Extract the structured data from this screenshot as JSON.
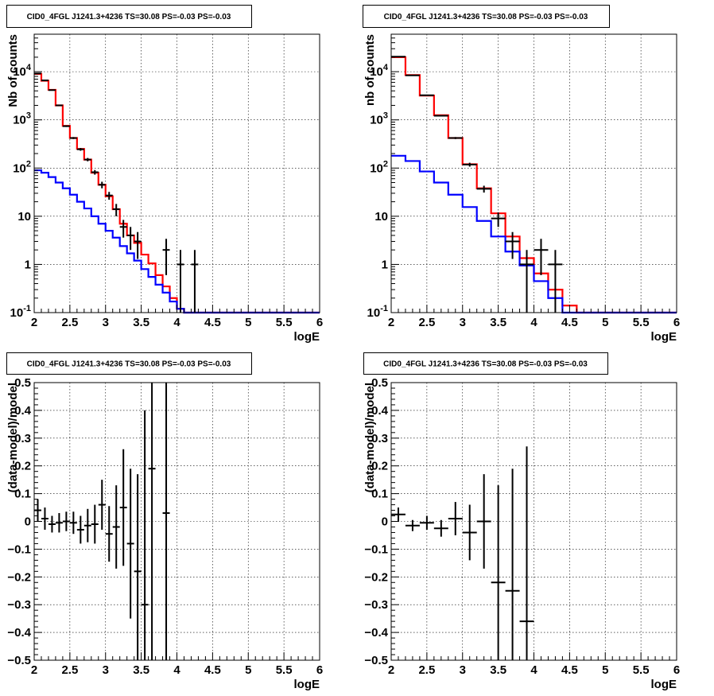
{
  "chart_data": [
    {
      "id": "top-left",
      "type": "histogram",
      "title": "CID0_4FGL J1241.3+4236 TS=30.08 PS=-0.03 PS=-0.03",
      "xlabel": "logE",
      "ylabel": "Nb of counts",
      "xlim": [
        2,
        6
      ],
      "ylim": [
        0.1,
        60000
      ],
      "yscale": "log",
      "grid": true,
      "xticks": [
        2,
        2.5,
        3,
        3.5,
        4,
        4.5,
        5,
        5.5,
        6
      ],
      "xtick_labels": [
        "2",
        "2.5",
        "3",
        "3.5",
        "4",
        "4.5",
        "5",
        "5.5",
        "6"
      ],
      "yticks": [
        0.1,
        1,
        10,
        100,
        1000,
        10000
      ],
      "ytick_labels": [
        "10^-1",
        "1",
        "10",
        "10^2",
        "10^3",
        "10^4"
      ],
      "bin_edges": [
        2,
        2.1,
        2.2,
        2.3,
        2.4,
        2.5,
        2.6,
        2.7,
        2.8,
        2.9,
        3,
        3.1,
        3.2,
        3.3,
        3.4,
        3.5,
        3.6,
        3.7,
        3.8,
        3.9,
        4,
        4.1,
        4.2,
        4.3,
        4.4,
        4.5,
        4.6,
        4.7,
        4.8,
        4.9,
        5,
        5.1,
        5.2,
        5.3,
        5.4,
        5.5,
        5.6,
        5.7,
        5.8,
        5.9,
        6
      ],
      "series": [
        {
          "color": "#ff0000",
          "style": "step",
          "values": [
            9000,
            6500,
            4200,
            2000,
            750,
            420,
            250,
            150,
            80,
            45,
            26,
            14,
            7,
            4,
            2.8,
            1.6,
            1.05,
            0.6,
            0.35,
            0.2,
            0.12,
            0.1,
            0.1,
            0.1,
            0.1,
            0.1,
            0.1,
            0.1,
            0.1,
            0.1,
            0.1,
            0.1,
            0.1,
            0.1,
            0.1,
            0.1,
            0.1,
            0.1,
            0.1,
            0.1
          ]
        },
        {
          "color": "#0000ff",
          "style": "step",
          "values": [
            90,
            80,
            65,
            50,
            38,
            28,
            20,
            14.5,
            10,
            7,
            5,
            3.6,
            2.4,
            1.7,
            1.2,
            0.8,
            0.55,
            0.38,
            0.26,
            0.17,
            0.12,
            0.1,
            0.1,
            0.1,
            0.1,
            0.1,
            0.1,
            0.1,
            0.1,
            0.1,
            0.1,
            0.1,
            0.1,
            0.1,
            0.1,
            0.1,
            0.1,
            0.1,
            0.1,
            0.1
          ]
        }
      ],
      "points": [
        {
          "x": 2.05,
          "y": 9200,
          "yerr": 96
        },
        {
          "x": 2.15,
          "y": 6600,
          "yerr": 81
        },
        {
          "x": 2.25,
          "y": 4150,
          "yerr": 64
        },
        {
          "x": 2.35,
          "y": 2000,
          "yerr": 45
        },
        {
          "x": 2.45,
          "y": 740,
          "yerr": 27
        },
        {
          "x": 2.55,
          "y": 420,
          "yerr": 20
        },
        {
          "x": 2.65,
          "y": 245,
          "yerr": 16
        },
        {
          "x": 2.75,
          "y": 150,
          "yerr": 12
        },
        {
          "x": 2.85,
          "y": 82,
          "yerr": 9
        },
        {
          "x": 2.95,
          "y": 45,
          "yerr": 7
        },
        {
          "x": 3.05,
          "y": 27,
          "yerr": 5
        },
        {
          "x": 3.15,
          "y": 14,
          "yerr": 4
        },
        {
          "x": 3.25,
          "y": 6,
          "yerr": 2.4
        },
        {
          "x": 3.35,
          "y": 4,
          "yerr": 2
        },
        {
          "x": 3.45,
          "y": 3,
          "yerr": 1.7
        },
        {
          "x": 3.85,
          "y": 2,
          "yerr": 1.4
        },
        {
          "x": 4.05,
          "y": 1,
          "yerr": 1
        },
        {
          "x": 4.25,
          "y": 1,
          "yerr": 1
        }
      ]
    },
    {
      "id": "top-right",
      "type": "histogram",
      "title": "CID0_4FGL J1241.3+4236 TS=30.08 PS=-0.03 PS=-0.03",
      "xlabel": "logE",
      "ylabel": "nb of counts",
      "xlim": [
        2,
        6
      ],
      "ylim": [
        0.1,
        60000
      ],
      "yscale": "log",
      "grid": true,
      "xticks": [
        2,
        2.5,
        3,
        3.5,
        4,
        4.5,
        5,
        5.5,
        6
      ],
      "xtick_labels": [
        "2",
        "2.5",
        "3",
        "3.5",
        "4",
        "4.5",
        "5",
        "5.5",
        "6"
      ],
      "yticks": [
        0.1,
        1,
        10,
        100,
        1000,
        10000
      ],
      "ytick_labels": [
        "10^-1",
        "1",
        "10",
        "10^2",
        "10^3",
        "10^4"
      ],
      "bin_edges": [
        2,
        2.2,
        2.4,
        2.6,
        2.8,
        3,
        3.2,
        3.4,
        3.6,
        3.8,
        4,
        4.2,
        4.4,
        4.6,
        4.8,
        5,
        5.2,
        5.4,
        5.6,
        5.8,
        6
      ],
      "series": [
        {
          "color": "#ff0000",
          "style": "step",
          "values": [
            20000,
            8500,
            3200,
            1250,
            420,
            120,
            38,
            11.5,
            3.8,
            1.35,
            0.65,
            0.3,
            0.14,
            0.1,
            0.1,
            0.1,
            0.1,
            0.1,
            0.1,
            0.1
          ]
        },
        {
          "color": "#0000ff",
          "style": "step",
          "values": [
            180,
            140,
            85,
            50,
            28,
            15.5,
            8,
            3.8,
            1.85,
            0.95,
            0.45,
            0.2,
            0.1,
            0.1,
            0.1,
            0.1,
            0.1,
            0.1,
            0.1,
            0.1
          ]
        }
      ],
      "points": [
        {
          "x": 2.1,
          "y": 20500,
          "yerr": 143
        },
        {
          "x": 2.3,
          "y": 8400,
          "yerr": 92
        },
        {
          "x": 2.5,
          "y": 3250,
          "yerr": 57
        },
        {
          "x": 2.7,
          "y": 1220,
          "yerr": 35
        },
        {
          "x": 2.9,
          "y": 420,
          "yerr": 20
        },
        {
          "x": 3.1,
          "y": 118,
          "yerr": 11
        },
        {
          "x": 3.3,
          "y": 37,
          "yerr": 6
        },
        {
          "x": 3.5,
          "y": 9,
          "yerr": 3
        },
        {
          "x": 3.7,
          "y": 3,
          "yerr": 1.7
        },
        {
          "x": 3.9,
          "y": 1,
          "yerr": 1
        },
        {
          "x": 4.1,
          "y": 2,
          "yerr": 1.4
        },
        {
          "x": 4.3,
          "y": 1,
          "yerr": 1
        }
      ]
    },
    {
      "id": "bottom-left",
      "type": "scatter",
      "title": "CID0_4FGL J1241.3+4236 TS=30.08 PS=-0.03 PS=-0.03",
      "xlabel": "logE",
      "ylabel": "(data-model)/model",
      "xlim": [
        2,
        6
      ],
      "ylim": [
        -0.5,
        0.5
      ],
      "yscale": "linear",
      "grid": true,
      "xticks": [
        2,
        2.5,
        3,
        3.5,
        4,
        4.5,
        5,
        5.5,
        6
      ],
      "xtick_labels": [
        "2",
        "2.5",
        "3",
        "3.5",
        "4",
        "4.5",
        "5",
        "5.5",
        "6"
      ],
      "yticks": [
        -0.5,
        -0.4,
        -0.3,
        -0.2,
        -0.1,
        0,
        0.1,
        0.2,
        0.3,
        0.4,
        0.5
      ],
      "ytick_labels": [
        "−0.5",
        "−0.4",
        "−0.3",
        "−0.2",
        "−0.1",
        "0",
        "0.1",
        "0.2",
        "0.3",
        "0.4",
        "0.5"
      ],
      "xerr": 0.05,
      "points": [
        {
          "x": 2.05,
          "y": 0.04,
          "yerr": 0.04
        },
        {
          "x": 2.15,
          "y": 0.01,
          "yerr": 0.04
        },
        {
          "x": 2.25,
          "y": -0.01,
          "yerr": 0.03
        },
        {
          "x": 2.35,
          "y": -0.005,
          "yerr": 0.035
        },
        {
          "x": 2.45,
          "y": 0.0,
          "yerr": 0.035
        },
        {
          "x": 2.55,
          "y": -0.005,
          "yerr": 0.04
        },
        {
          "x": 2.65,
          "y": -0.03,
          "yerr": 0.05
        },
        {
          "x": 2.75,
          "y": -0.015,
          "yerr": 0.06
        },
        {
          "x": 2.85,
          "y": -0.01,
          "yerr": 0.07
        },
        {
          "x": 2.95,
          "y": 0.06,
          "yerr": 0.09
        },
        {
          "x": 3.05,
          "y": -0.045,
          "yerr": 0.1
        },
        {
          "x": 3.15,
          "y": -0.02,
          "yerr": 0.15
        },
        {
          "x": 3.25,
          "y": 0.05,
          "yerr": 0.21
        },
        {
          "x": 3.35,
          "y": -0.08,
          "yerr": 0.27
        },
        {
          "x": 3.45,
          "y": -0.18,
          "yerr": 0.35
        },
        {
          "x": 3.55,
          "y": -0.3,
          "yerr": 0.7
        },
        {
          "x": 3.65,
          "y": 0.19,
          "yerr": 0.8
        },
        {
          "x": 3.85,
          "y": 0.03,
          "yerr": 1.0
        }
      ]
    },
    {
      "id": "bottom-right",
      "type": "scatter",
      "title": "CID0_4FGL J1241.3+4236 TS=30.08 PS=-0.03 PS=-0.03",
      "xlabel": "logE",
      "ylabel": "(data-model)/model",
      "xlim": [
        2,
        6
      ],
      "ylim": [
        -0.5,
        0.5
      ],
      "yscale": "linear",
      "grid": true,
      "xticks": [
        2,
        2.5,
        3,
        3.5,
        4,
        4.5,
        5,
        5.5,
        6
      ],
      "xtick_labels": [
        "2",
        "2.5",
        "3",
        "3.5",
        "4",
        "4.5",
        "5",
        "5.5",
        "6"
      ],
      "yticks": [
        -0.5,
        -0.4,
        -0.3,
        -0.2,
        -0.1,
        0,
        0.1,
        0.2,
        0.3,
        0.4,
        0.5
      ],
      "ytick_labels": [
        "−0.5",
        "−0.4",
        "−0.3",
        "−0.2",
        "−0.1",
        "0",
        "0.1",
        "0.2",
        "0.3",
        "0.4",
        "0.5"
      ],
      "xerr": 0.1,
      "points": [
        {
          "x": 2.1,
          "y": 0.025,
          "yerr": 0.025
        },
        {
          "x": 2.3,
          "y": -0.015,
          "yerr": 0.02
        },
        {
          "x": 2.5,
          "y": -0.005,
          "yerr": 0.025
        },
        {
          "x": 2.7,
          "y": -0.025,
          "yerr": 0.03
        },
        {
          "x": 2.9,
          "y": 0.01,
          "yerr": 0.06
        },
        {
          "x": 3.1,
          "y": -0.04,
          "yerr": 0.1
        },
        {
          "x": 3.3,
          "y": 0.0,
          "yerr": 0.17
        },
        {
          "x": 3.5,
          "y": -0.22,
          "yerr": 0.35
        },
        {
          "x": 3.7,
          "y": -0.25,
          "yerr": 0.44
        },
        {
          "x": 3.9,
          "y": -0.36,
          "yerr": 0.63
        }
      ]
    }
  ]
}
